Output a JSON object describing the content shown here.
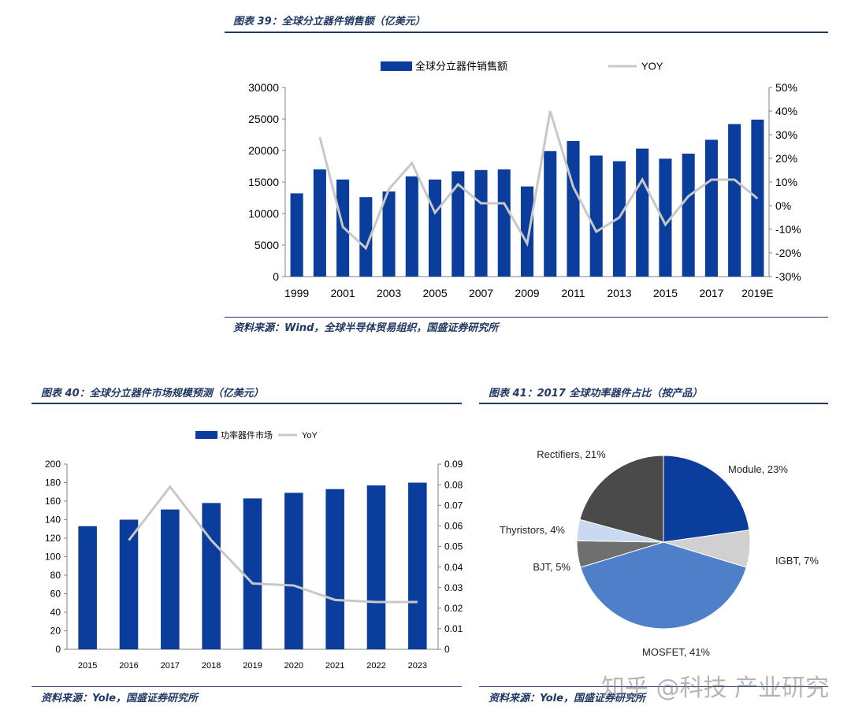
{
  "figure39": {
    "title": "图表 39：全球分立器件销售额（亿美元）",
    "source": "资料来源：Wind，全球半导体贸易组织，国盛证券研究所"
  },
  "figure40": {
    "title": "图表 40：全球分立器件市场规模预测（亿美元）",
    "source": "资料来源：Yole，国盛证券研究所"
  },
  "figure41": {
    "title": "图表 41：2017 全球功率器件占比（按产品）",
    "source": "资料来源：Yole，国盛证券研究所"
  },
  "watermark": "知乎 @科技 产业研究",
  "colors": {
    "bar": "#0b3d9c",
    "line": "#c8c8c8",
    "rule": "#1f3864"
  },
  "chart_data": [
    {
      "type": "bar",
      "categories": [
        "1999",
        "2000",
        "2001",
        "2002",
        "2003",
        "2004",
        "2005",
        "2006",
        "2007",
        "2008",
        "2009",
        "2010",
        "2011",
        "2012",
        "2013",
        "2014",
        "2015",
        "2016",
        "2017",
        "2018",
        "2019E"
      ],
      "x_tick_labels": [
        "1999",
        "2001",
        "2003",
        "2005",
        "2007",
        "2009",
        "2011",
        "2013",
        "2015",
        "2017",
        "2019E"
      ],
      "series": [
        {
          "name": "全球分立器件销售额",
          "type": "bar",
          "axis": "left",
          "values": [
            13200,
            17000,
            15400,
            12600,
            13500,
            15900,
            15400,
            16700,
            16900,
            17000,
            14300,
            19900,
            21500,
            19200,
            18300,
            20300,
            18700,
            19500,
            21700,
            24200,
            24900
          ]
        },
        {
          "name": "YOY",
          "type": "line",
          "axis": "right",
          "values": [
            null,
            0.29,
            -0.09,
            -0.18,
            0.07,
            0.18,
            -0.03,
            0.09,
            0.01,
            0.01,
            -0.16,
            0.4,
            0.08,
            -0.11,
            -0.05,
            0.11,
            -0.08,
            0.04,
            0.11,
            0.11,
            0.03
          ]
        }
      ],
      "yleft": {
        "min": 0,
        "max": 30000,
        "ticks": [
          "0",
          "5000",
          "10000",
          "15000",
          "20000",
          "25000",
          "30000"
        ]
      },
      "yright": {
        "min": -0.3,
        "max": 0.5,
        "ticks": [
          "-30%",
          "-20%",
          "-10%",
          "0%",
          "10%",
          "20%",
          "30%",
          "40%",
          "50%"
        ]
      },
      "legend": "top-center"
    },
    {
      "type": "bar",
      "categories": [
        "2015",
        "2016",
        "2017",
        "2018",
        "2019",
        "2020",
        "2021",
        "2022",
        "2023"
      ],
      "series": [
        {
          "name": "功率器件市场",
          "type": "bar",
          "axis": "left",
          "values": [
            133,
            140,
            151,
            158,
            163,
            169,
            173,
            177,
            180
          ]
        },
        {
          "name": "YoY",
          "type": "line",
          "axis": "right",
          "values": [
            null,
            0.053,
            0.079,
            0.053,
            0.032,
            0.031,
            0.024,
            0.023,
            0.023
          ]
        }
      ],
      "yleft": {
        "min": 0,
        "max": 200,
        "ticks": [
          "0",
          "20",
          "40",
          "60",
          "80",
          "100",
          "120",
          "140",
          "160",
          "180",
          "200"
        ]
      },
      "yright": {
        "min": 0,
        "max": 0.09,
        "ticks": [
          "0",
          "0.01",
          "0.02",
          "0.03",
          "0.04",
          "0.05",
          "0.06",
          "0.07",
          "0.08",
          "0.09"
        ]
      },
      "legend": "top-center"
    },
    {
      "type": "pie",
      "slices": [
        {
          "label": "Module, 23%",
          "value": 23,
          "color": "#0b3d9c"
        },
        {
          "label": "IGBT, 7%",
          "value": 7,
          "color": "#d0d0d0"
        },
        {
          "label": "MOSFET, 41%",
          "value": 41,
          "color": "#4f7fc9"
        },
        {
          "label": "BJT, 5%",
          "value": 5,
          "color": "#6f6f6f"
        },
        {
          "label": "Thyristors, 4%",
          "value": 4,
          "color": "#c9d9f0"
        },
        {
          "label": "Rectifiers, 21%",
          "value": 21,
          "color": "#4a4a4a"
        }
      ]
    }
  ]
}
